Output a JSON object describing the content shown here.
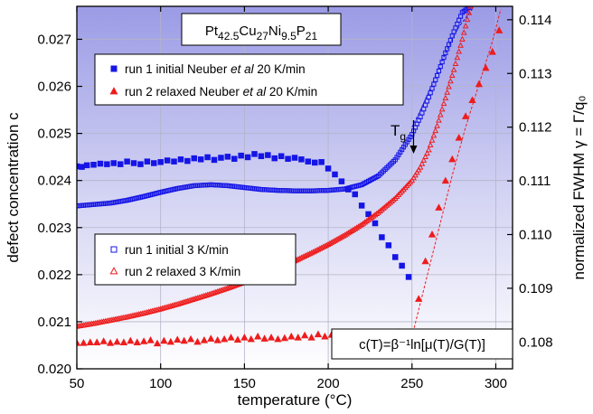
{
  "chart_data": {
    "type": "scatter",
    "title_parts": [
      "Pt",
      "42.5",
      "Cu",
      "27",
      "Ni",
      "9.5",
      "P",
      "21"
    ],
    "xlabel": "temperature (°C)",
    "ylabel_left": "defect concentration c",
    "ylabel_right": "normalized FWHM  γ = Γ/q₀",
    "xlim": [
      50,
      310
    ],
    "ylim_left": [
      0.02,
      0.0277
    ],
    "ylim_right": [
      0.1075,
      0.11425
    ],
    "x_ticks": [
      "50",
      "100",
      "150",
      "200",
      "250",
      "300"
    ],
    "y_ticks_left": [
      "0.020",
      "0.021",
      "0.022",
      "0.023",
      "0.024",
      "0.025",
      "0.026",
      "0.027"
    ],
    "y_ticks_right": [
      "0.108",
      "0.109",
      "0.110",
      "0.111",
      "0.112",
      "0.113",
      "0.114"
    ],
    "grid": true,
    "background": "gradient lavender (top) to white (bottom)",
    "colors": {
      "blue": "#1515e6",
      "red": "#ee1c1c"
    },
    "annotation": "T",
    "annotation_sub": "g",
    "annotation_x": 252,
    "formula": "c(T)=β⁻¹ln[μ(T)/G(T)]",
    "legend_top": [
      {
        "marker": "filled-square",
        "color": "blue",
        "pre": "run 1 initial Neuber ",
        "italic": "et al",
        "post": "  20 K/min"
      },
      {
        "marker": "filled-triangle",
        "color": "red",
        "pre": "run 2 relaxed Neuber ",
        "italic": "et al",
        "post": "  20 K/min"
      }
    ],
    "legend_bottom": [
      {
        "marker": "open-square",
        "color": "blue",
        "label": "run 1 initial  3 K/min"
      },
      {
        "marker": "open-triangle",
        "color": "red",
        "label": "run 2 relaxed  3 K/min"
      }
    ],
    "series": [
      {
        "name": "run 1 initial Neuber et al  20 K/min",
        "axis": "right",
        "marker": "filled-square",
        "color": "blue",
        "x": [
          50,
          53,
          56,
          60,
          64,
          68,
          72,
          76,
          80,
          84,
          88,
          92,
          96,
          100,
          104,
          108,
          112,
          116,
          120,
          124,
          128,
          132,
          136,
          140,
          144,
          148,
          152,
          156,
          160,
          164,
          168,
          172,
          176,
          180,
          184,
          188,
          192,
          196,
          200,
          204,
          208,
          212,
          216,
          220,
          224,
          228,
          232,
          236,
          240,
          244,
          248
        ],
        "y": [
          111.27,
          111.26,
          111.29,
          111.3,
          111.32,
          111.31,
          111.33,
          111.31,
          111.36,
          111.33,
          111.31,
          111.36,
          111.33,
          111.35,
          111.38,
          111.36,
          111.4,
          111.37,
          111.42,
          111.4,
          111.44,
          111.39,
          111.43,
          111.45,
          111.41,
          111.47,
          111.44,
          111.5,
          111.46,
          111.48,
          111.42,
          111.46,
          111.41,
          111.43,
          111.4,
          111.36,
          111.34,
          111.35,
          111.23,
          111.12,
          110.99,
          110.84,
          110.75,
          110.54,
          110.38,
          110.21,
          109.95,
          109.8,
          109.58,
          109.42,
          109.21
        ],
        "y_scale_note": "values ×0.001"
      },
      {
        "name": "run 2 relaxed Neuber et al  20 K/min",
        "axis": "right",
        "marker": "filled-triangle",
        "color": "red",
        "x": [
          50,
          54,
          58,
          62,
          66,
          70,
          74,
          78,
          82,
          86,
          90,
          94,
          98,
          102,
          106,
          110,
          114,
          118,
          122,
          126,
          130,
          134,
          138,
          142,
          146,
          150,
          154,
          158,
          162,
          166,
          170,
          174,
          178,
          182,
          186,
          190,
          194,
          198,
          202,
          206,
          210,
          214,
          218,
          222,
          226,
          230,
          234,
          238,
          242,
          246,
          250,
          254,
          258,
          262,
          266,
          270,
          274,
          278,
          282,
          286,
          290,
          294,
          298,
          302
        ],
        "y": [
          107.98,
          107.98,
          107.99,
          107.99,
          108.01,
          107.98,
          108.0,
          107.99,
          108.02,
          107.99,
          108.01,
          108.03,
          107.97,
          108.02,
          108.0,
          108.04,
          108.02,
          108.05,
          108.0,
          108.03,
          108.06,
          108.03,
          108.05,
          108.08,
          108.04,
          108.08,
          108.05,
          108.1,
          108.06,
          108.08,
          108.05,
          108.07,
          108.1,
          108.08,
          108.12,
          108.08,
          108.14,
          108.1,
          108.13,
          108.11,
          108.14,
          108.12,
          108.16,
          108.14,
          108.13,
          108.16,
          108.13,
          108.12,
          108.18,
          108.14,
          108.1,
          108.8,
          109.5,
          110.0,
          110.5,
          111.0,
          111.4,
          111.8,
          112.2,
          112.5,
          112.8,
          113.1,
          113.4,
          113.8
        ],
        "y_scale_note": "values ×0.001"
      },
      {
        "name": "run 1 initial  3 K/min",
        "axis": "left",
        "marker": "open-square",
        "color": "blue",
        "curve": "fit",
        "x": [
          50,
          60,
          70,
          80,
          90,
          100,
          110,
          120,
          130,
          140,
          150,
          160,
          170,
          180,
          190,
          200,
          210,
          220,
          230,
          240,
          250,
          255,
          260,
          265,
          270,
          275,
          280,
          285
        ],
        "y": [
          0.02346,
          0.02349,
          0.02352,
          0.02358,
          0.02366,
          0.02375,
          0.02383,
          0.02389,
          0.02391,
          0.02389,
          0.02385,
          0.02381,
          0.02379,
          0.02378,
          0.02378,
          0.02379,
          0.02382,
          0.02391,
          0.0241,
          0.02444,
          0.02498,
          0.02535,
          0.02577,
          0.02623,
          0.02671,
          0.02716,
          0.02757,
          0.0277
        ]
      },
      {
        "name": "run 2 relaxed  3 K/min",
        "axis": "left",
        "marker": "open-triangle",
        "color": "red",
        "curve": "fit",
        "x": [
          50,
          60,
          70,
          80,
          90,
          100,
          110,
          120,
          130,
          140,
          150,
          160,
          170,
          180,
          190,
          200,
          210,
          220,
          230,
          240,
          250,
          255,
          260,
          265,
          270,
          275,
          280,
          285
        ],
        "y": [
          0.0209,
          0.02096,
          0.02103,
          0.0211,
          0.02118,
          0.02127,
          0.02137,
          0.02148,
          0.02159,
          0.02171,
          0.02184,
          0.02198,
          0.02213,
          0.02229,
          0.02246,
          0.02264,
          0.02284,
          0.02306,
          0.02332,
          0.02362,
          0.024,
          0.02428,
          0.02465,
          0.02516,
          0.02575,
          0.02635,
          0.027,
          0.0277
        ]
      }
    ],
    "fit_lines": [
      {
        "axis": "right",
        "color": "blue",
        "x": [
          250,
          254,
          258,
          262,
          266,
          270,
          274,
          278,
          282,
          286
        ],
        "y": [
          112.0,
          112.25,
          112.52,
          112.8,
          113.1,
          113.38,
          113.64,
          113.87,
          114.03,
          114.2
        ]
      },
      {
        "axis": "right",
        "color": "red",
        "x": [
          250,
          258,
          266,
          274,
          282,
          290,
          298,
          303
        ],
        "y": [
          108.1,
          109.1,
          110.1,
          111.1,
          112.0,
          112.8,
          113.6,
          114.2
        ]
      }
    ]
  }
}
